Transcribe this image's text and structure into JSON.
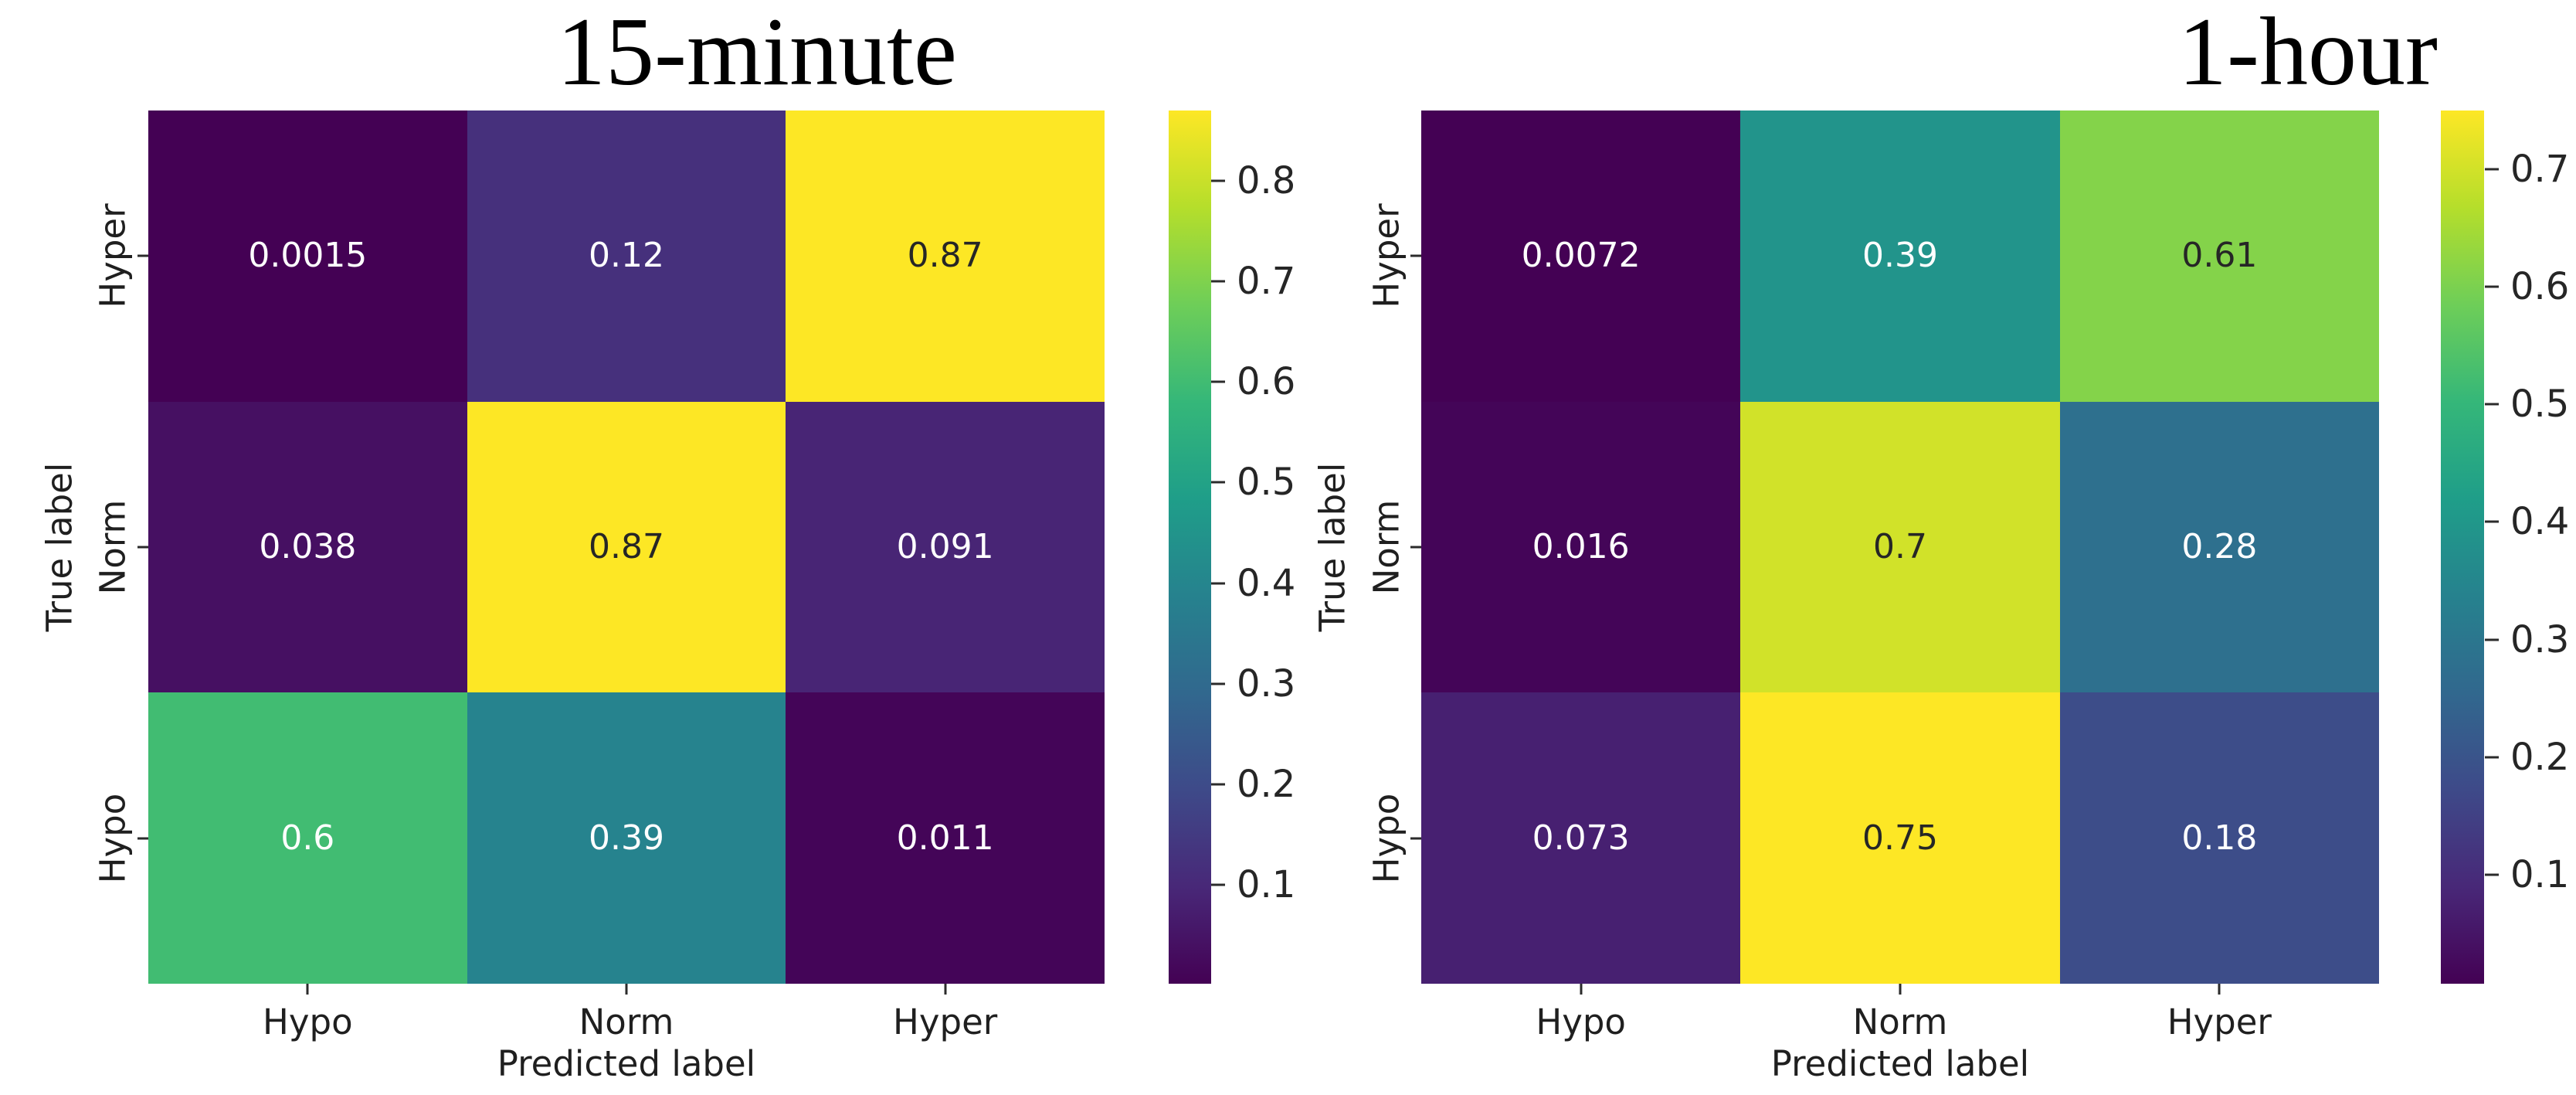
{
  "chart_data": [
    {
      "type": "heatmap",
      "title": "15-minute",
      "xlabel": "Predicted label",
      "ylabel": "True label",
      "x_categories": [
        "Hypo",
        "Norm",
        "Hyper"
      ],
      "y_categories": [
        "Hyper",
        "Norm",
        "Hypo"
      ],
      "values": [
        [
          0.0015,
          0.12,
          0.87
        ],
        [
          0.038,
          0.87,
          0.091
        ],
        [
          0.6,
          0.39,
          0.011
        ]
      ],
      "cell_labels": [
        [
          "0.0015",
          "0.12",
          "0.87"
        ],
        [
          "0.038",
          "0.87",
          "0.091"
        ],
        [
          "0.6",
          "0.39",
          "0.011"
        ]
      ],
      "colormap": "viridis",
      "vmin": 0.0015,
      "vmax": 0.87,
      "colorbar_ticks": [
        0.8,
        0.7,
        0.6,
        0.5,
        0.4,
        0.3,
        0.2,
        0.1
      ],
      "colorbar_tick_labels": [
        "0.8",
        "0.7",
        "0.6",
        "0.5",
        "0.4",
        "0.3",
        "0.2",
        "0.1"
      ],
      "legend_position": "right-colorbar",
      "grid": false
    },
    {
      "type": "heatmap",
      "title": "1-hour",
      "xlabel": "Predicted label",
      "ylabel": "True label",
      "x_categories": [
        "Hypo",
        "Norm",
        "Hyper"
      ],
      "y_categories": [
        "Hyper",
        "Norm",
        "Hypo"
      ],
      "values": [
        [
          0.0072,
          0.39,
          0.61
        ],
        [
          0.016,
          0.7,
          0.28
        ],
        [
          0.073,
          0.75,
          0.18
        ]
      ],
      "cell_labels": [
        [
          "0.0072",
          "0.39",
          "0.61"
        ],
        [
          "0.016",
          "0.7",
          "0.28"
        ],
        [
          "0.073",
          "0.75",
          "0.18"
        ]
      ],
      "colormap": "viridis",
      "vmin": 0.0072,
      "vmax": 0.75,
      "colorbar_ticks": [
        0.7,
        0.6,
        0.5,
        0.4,
        0.3,
        0.2,
        0.1
      ],
      "colorbar_tick_labels": [
        "0.7",
        "0.6",
        "0.5",
        "0.4",
        "0.3",
        "0.2",
        "0.1"
      ],
      "legend_position": "right-colorbar",
      "grid": false
    }
  ],
  "colors": {
    "background": "#ffffff",
    "axis_text": "#1f1f1f",
    "annotation_dark": "#262626",
    "annotation_light": "#ffffff",
    "viridis_stops": [
      "#440154",
      "#482878",
      "#3e4a89",
      "#31688e",
      "#26828e",
      "#1f9e89",
      "#35b779",
      "#6ece58",
      "#b5de2b",
      "#fde725"
    ]
  }
}
